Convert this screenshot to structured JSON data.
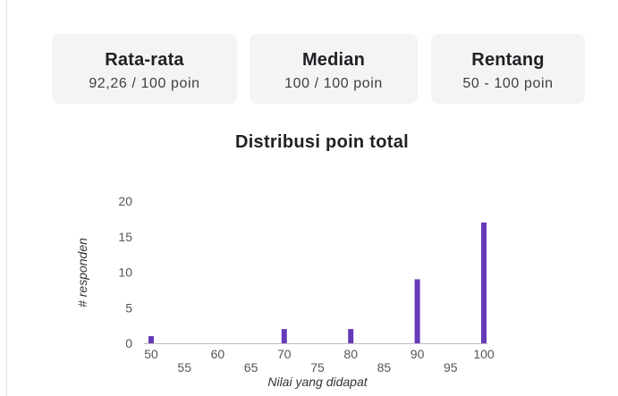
{
  "summary": {
    "mean": {
      "title": "Rata-rata",
      "value": "92,26 / 100 poin"
    },
    "median": {
      "title": "Median",
      "value": "100 / 100 poin"
    },
    "range": {
      "title": "Rentang",
      "value": "50 - 100 poin"
    }
  },
  "chart_data": {
    "type": "bar",
    "title": "Distribusi poin total",
    "xlabel": "Nilai yang didapat",
    "ylabel": "# responden",
    "x_ticks_top": [
      "50",
      "60",
      "70",
      "80",
      "90",
      "100"
    ],
    "x_ticks_bottom": [
      "55",
      "65",
      "75",
      "85",
      "95"
    ],
    "y_ticks": [
      "0",
      "5",
      "10",
      "15",
      "20"
    ],
    "xlim": [
      50,
      100
    ],
    "ylim": [
      0,
      20
    ],
    "grid": false,
    "bar_color": "#673ab7",
    "x": [
      50,
      70,
      80,
      90,
      100
    ],
    "values": [
      1,
      2,
      2,
      9,
      17
    ]
  }
}
